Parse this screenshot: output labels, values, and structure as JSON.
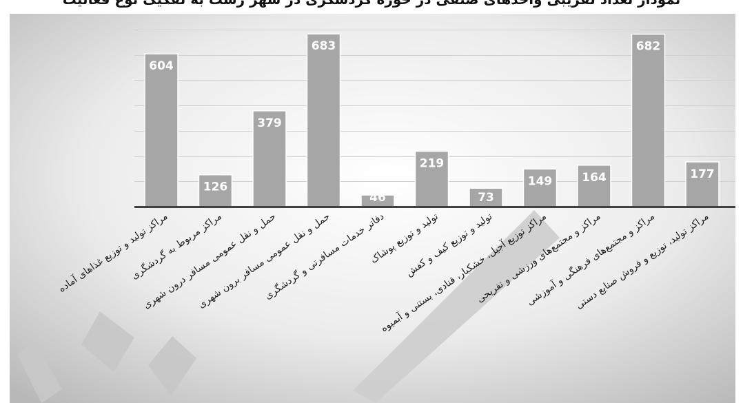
{
  "chart_data": {
    "type": "bar",
    "title": "نمودار تعداد تقریبی واحدهای صنفی در حوزه گردشگری در شهر رشت به تفکیک نوع فعالیت",
    "xlabel": "",
    "ylabel": "",
    "ylim": [
      0,
      700
    ],
    "grid": true,
    "categories": [
      "مراکز تولید و توزیع غذاهای آماده",
      "مراکز مربوط به گردشگری",
      "حمل و نقل عمومی مسافر درون شهری",
      "حمل و نقل عمومی مسافر برون شهری",
      "دفاتر خدمات مسافرتی و گردشگری",
      "تولید و توزیع پوشاک",
      "تولید و توزیع کیف و کفش",
      "مراکز توزیع آجیل، خشکبار، قنادی، بستنی و آبمیوه",
      "مراکز و مجتمع‌های ورزشی و تفریحی",
      "مراکز و مجتمع‌های فرهنگی و آموزشی",
      "مراکز تولید، توزیع و فروش صنایع دستی"
    ],
    "values": [
      604,
      126,
      379,
      683,
      46,
      219,
      73,
      149,
      164,
      682,
      177
    ],
    "data_labels": [
      "604",
      "126",
      "379",
      "683",
      "46",
      "219",
      "73",
      "149",
      "164",
      "682",
      "177"
    ],
    "colors": {
      "bar": "#a6a6a6",
      "bar_edge": "#ffffff",
      "grid": "#d0d0d0",
      "axis": "#404040",
      "label_text": "#ffffff"
    }
  }
}
